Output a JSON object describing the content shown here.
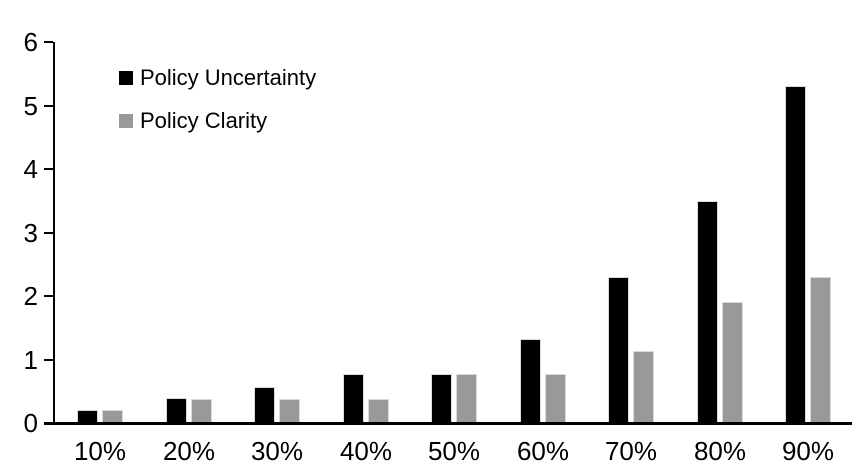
{
  "chart_data": {
    "type": "bar",
    "title": "",
    "xlabel": "",
    "ylabel": "",
    "categories": [
      "10%",
      "20%",
      "30%",
      "40%",
      "50%",
      "60%",
      "70%",
      "80%",
      "90%"
    ],
    "series": [
      {
        "name": "Policy Uncertainty",
        "color": "#000000",
        "values": [
          0.2,
          0.4,
          0.57,
          0.77,
          0.77,
          1.33,
          2.3,
          3.5,
          5.3
        ]
      },
      {
        "name": "Policy Clarity",
        "color": "#999999",
        "values": [
          0.2,
          0.38,
          0.38,
          0.38,
          0.77,
          0.77,
          1.13,
          1.9,
          2.3
        ]
      }
    ],
    "ylim": [
      0,
      6
    ],
    "yticks": [
      "0",
      "1",
      "2",
      "3",
      "4",
      "5",
      "6"
    ],
    "grid": false,
    "legend_position": "top-left"
  },
  "colors": {
    "background": "#ffffff",
    "axis": "#000000",
    "bar_outline": "#d9d9d9"
  }
}
